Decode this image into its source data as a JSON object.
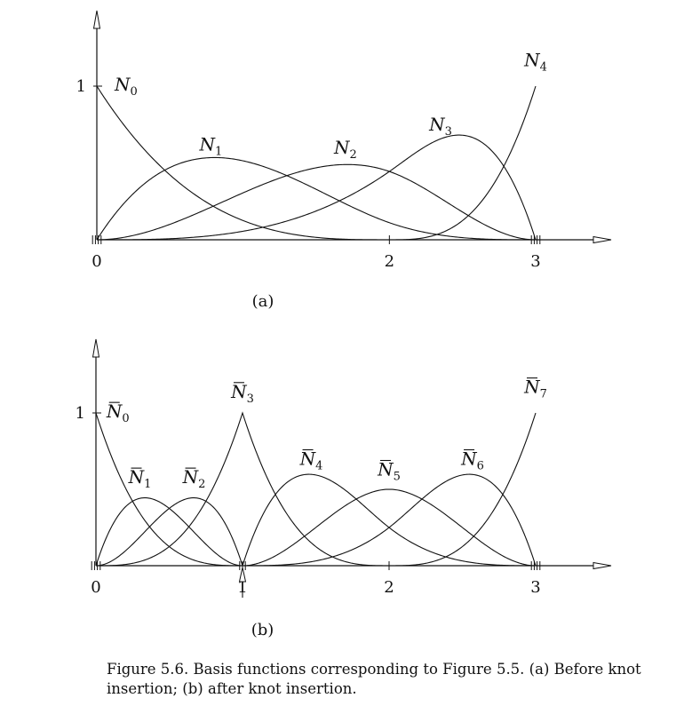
{
  "chart_data": [
    {
      "type": "line",
      "panel_tag": "(a)",
      "xlim": [
        0,
        3
      ],
      "ylim": [
        0,
        1
      ],
      "x_ticks": [
        {
          "value": 0,
          "label": "0"
        },
        {
          "value": 2,
          "label": "2"
        },
        {
          "value": 3,
          "label": "3"
        }
      ],
      "y_ticks": [
        {
          "value": 1,
          "label": "1"
        }
      ],
      "knot_vector": [
        0,
        0,
        0,
        0,
        2,
        3,
        3,
        3,
        3
      ],
      "series": [
        {
          "name": "N",
          "sub": "0",
          "bar": false,
          "index": 0,
          "label_at": [
            0.2,
            0.97
          ]
        },
        {
          "name": "N",
          "sub": "1",
          "bar": false,
          "index": 1,
          "label_at": [
            0.78,
            0.58
          ]
        },
        {
          "name": "N",
          "sub": "2",
          "bar": false,
          "index": 2,
          "label_at": [
            1.7,
            0.56
          ]
        },
        {
          "name": "N",
          "sub": "3",
          "bar": false,
          "index": 3,
          "label_at": [
            2.35,
            0.71
          ]
        },
        {
          "name": "N",
          "sub": "4",
          "bar": false,
          "index": 4,
          "label_at": [
            3.0,
            1.13
          ]
        }
      ]
    },
    {
      "type": "line",
      "panel_tag": "(b)",
      "xlim": [
        0,
        3
      ],
      "ylim": [
        0,
        1
      ],
      "x_ticks": [
        {
          "value": 0,
          "label": "0"
        },
        {
          "value": 1,
          "label": "1"
        },
        {
          "value": 2,
          "label": "2"
        },
        {
          "value": 3,
          "label": "3"
        }
      ],
      "y_ticks": [
        {
          "value": 1,
          "label": "1"
        }
      ],
      "knot_vector": [
        0,
        0,
        0,
        0,
        1,
        1,
        1,
        2,
        3,
        3,
        3,
        3
      ],
      "inserted_knot": 1,
      "series": [
        {
          "name": "N",
          "sub": "0",
          "bar": true,
          "index": 0,
          "label_at": [
            0.15,
            0.97
          ]
        },
        {
          "name": "N",
          "sub": "1",
          "bar": true,
          "index": 1,
          "label_at": [
            0.3,
            0.54
          ]
        },
        {
          "name": "N",
          "sub": "2",
          "bar": true,
          "index": 2,
          "label_at": [
            0.67,
            0.54
          ]
        },
        {
          "name": "N",
          "sub": "3",
          "bar": true,
          "index": 3,
          "label_at": [
            1.0,
            1.1
          ]
        },
        {
          "name": "N",
          "sub": "4",
          "bar": true,
          "index": 4,
          "label_at": [
            1.47,
            0.66
          ]
        },
        {
          "name": "N",
          "sub": "5",
          "bar": true,
          "index": 5,
          "label_at": [
            2.0,
            0.59
          ]
        },
        {
          "name": "N",
          "sub": "6",
          "bar": true,
          "index": 6,
          "label_at": [
            2.57,
            0.66
          ]
        },
        {
          "name": "N",
          "sub": "7",
          "bar": true,
          "index": 7,
          "label_at": [
            3.0,
            1.13
          ]
        }
      ]
    }
  ],
  "caption": "Figure 5.6. Basis functions corresponding to Figure 5.5. (a) Before knot insertion; (b) after knot insertion."
}
